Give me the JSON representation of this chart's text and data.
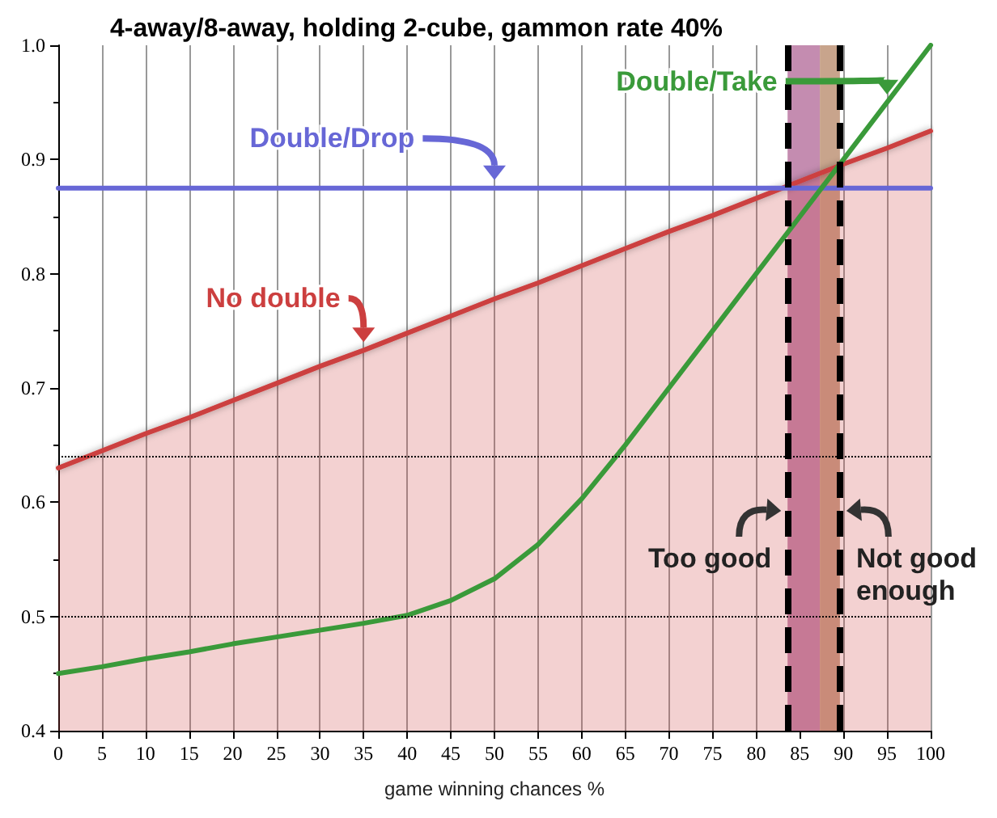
{
  "chart_data": {
    "type": "line",
    "title": "4-away/8-away, holding 2-cube, gammon rate 40%",
    "xlabel": "game winning chances %",
    "x": [
      0,
      5,
      10,
      15,
      20,
      25,
      30,
      35,
      40,
      45,
      50,
      55,
      60,
      65,
      70,
      75,
      80,
      85,
      90,
      95,
      100
    ],
    "series": [
      {
        "name": "No double",
        "type": "area",
        "color": "#cc3f3f",
        "values": [
          0.63,
          0.645,
          0.66,
          0.674,
          0.689,
          0.704,
          0.719,
          0.733,
          0.748,
          0.763,
          0.778,
          0.792,
          0.807,
          0.822,
          0.837,
          0.851,
          0.866,
          0.881,
          0.896,
          0.91,
          0.925
        ]
      },
      {
        "name": "Double/Drop",
        "color": "#6767d6",
        "values": [
          0.875,
          0.875,
          0.875,
          0.875,
          0.875,
          0.875,
          0.875,
          0.875,
          0.875,
          0.875,
          0.875,
          0.875,
          0.875,
          0.875,
          0.875,
          0.875,
          0.875,
          0.875,
          0.875,
          0.875,
          0.875
        ]
      },
      {
        "name": "Double/Take",
        "color": "#3a9a3a",
        "values": [
          0.45,
          0.456,
          0.463,
          0.469,
          0.476,
          0.482,
          0.488,
          0.494,
          0.501,
          0.514,
          0.533,
          0.563,
          0.603,
          0.65,
          0.7,
          0.75,
          0.8,
          0.85,
          0.9,
          0.95,
          1.0
        ]
      }
    ],
    "xlim": [
      0,
      100
    ],
    "xticks": [
      0,
      5,
      10,
      15,
      20,
      25,
      30,
      35,
      40,
      45,
      50,
      55,
      60,
      65,
      70,
      75,
      80,
      85,
      90,
      95,
      100
    ],
    "ylim": [
      0.4,
      1.0
    ],
    "yticks": [
      0.4,
      0.5,
      0.6,
      0.7,
      0.8,
      0.9,
      {
        "value": 1.0,
        "label": "1.0"
      }
    ],
    "grid": "x",
    "legend": "top right",
    "marker": "none",
    "line_style": "solid",
    "ref_lines": [
      {
        "axis": "y",
        "value": 0.5,
        "color": "#000000",
        "line_style": "dotted"
      },
      {
        "axis": "y",
        "value": 0.64,
        "color": "#000000",
        "line_style": "dotted"
      },
      {
        "axis": "x",
        "value": 83.6,
        "label": "Too good",
        "color": "#000000",
        "line_style": "dashed"
      },
      {
        "axis": "x",
        "value": 89.6,
        "label": "Not good enough",
        "color": "#000000",
        "line_style": "dashed"
      }
    ],
    "bands": [
      {
        "axis": "x",
        "from": 83.6,
        "to": 87.3,
        "color": "#c48cb0"
      },
      {
        "axis": "x",
        "from": 87.3,
        "to": 89.6,
        "color": "#c8a48c"
      }
    ]
  }
}
